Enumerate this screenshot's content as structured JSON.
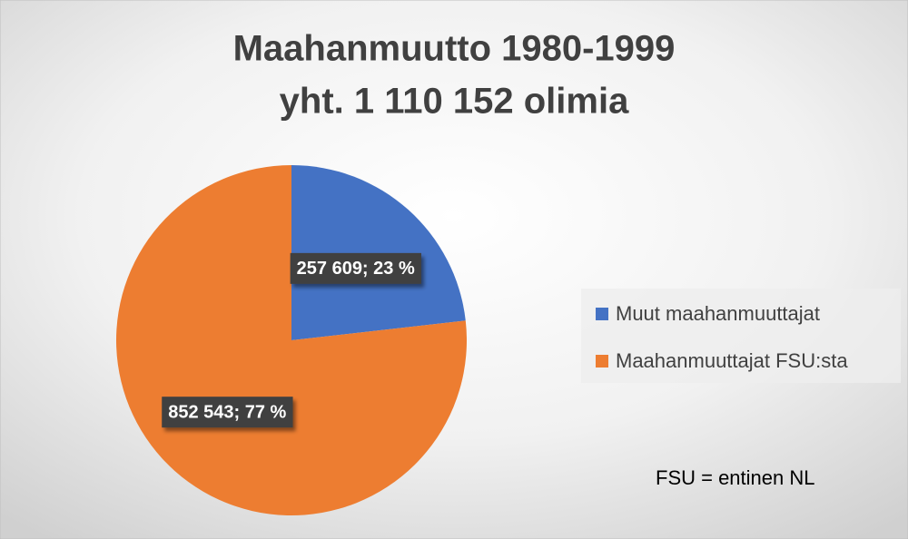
{
  "chart_data": {
    "type": "pie",
    "title": "Maahanmuutto 1980-1999",
    "subtitle": "yht. 1 110 152 olimia",
    "categories": [
      "Muut maahanmuuttajat",
      "Maahanmuuttajat FSU:sta"
    ],
    "values": [
      257609,
      852543
    ],
    "value_labels": [
      "257 609; 23 %",
      "852 543; 77 %"
    ],
    "colors": [
      "#4472c4",
      "#ed7d31"
    ],
    "legend": "right",
    "annotation": "FSU = entinen NL"
  }
}
